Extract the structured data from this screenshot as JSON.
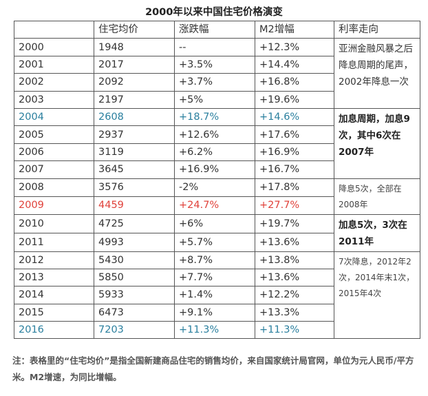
{
  "title": "2000年以来中国住宅价格演变",
  "headers": [
    "",
    "住宅均价",
    "涨跌幅",
    "M2增幅",
    "利率走向"
  ],
  "rows": [
    {
      "year": "2000",
      "price": "1948",
      "change": "--",
      "m2": "+12.3%",
      "style": "normal"
    },
    {
      "year": "2001",
      "price": "2017",
      "change": "+3.5%",
      "m2": "+14.4%",
      "style": "normal"
    },
    {
      "year": "2002",
      "price": "2092",
      "change": "+3.7%",
      "m2": "+16.8%",
      "style": "normal"
    },
    {
      "year": "2003",
      "price": "2197",
      "change": "+5%",
      "m2": "+19.6%",
      "style": "normal"
    },
    {
      "year": "2004",
      "price": "2608",
      "change": "+18.7%",
      "m2": "+14.6%",
      "style": "blue"
    },
    {
      "year": "2005",
      "price": "2937",
      "change": "+12.6%",
      "m2": "+17.6%",
      "style": "normal"
    },
    {
      "year": "2006",
      "price": "3119",
      "change": "+6.2%",
      "m2": "+16.9%",
      "style": "normal"
    },
    {
      "year": "2007",
      "price": "3645",
      "change": "+16.9%",
      "m2": "+16.7%",
      "style": "normal"
    },
    {
      "year": "2008",
      "price": "3576",
      "change": "-2%",
      "m2": "+17.8%",
      "style": "normal"
    },
    {
      "year": "2009",
      "price": "4459",
      "change": "+24.7%",
      "m2": "+27.7%",
      "style": "red"
    },
    {
      "year": "2010",
      "price": "4725",
      "change": "+6%",
      "m2": "+19.7%",
      "style": "normal"
    },
    {
      "year": "2011",
      "price": "4993",
      "change": "+5.7%",
      "m2": "+13.6%",
      "style": "normal"
    },
    {
      "year": "2012",
      "price": "5430",
      "change": "+8.7%",
      "m2": "+13.8%",
      "style": "normal"
    },
    {
      "year": "2013",
      "price": "5850",
      "change": "+7.7%",
      "m2": "+13.6%",
      "style": "normal"
    },
    {
      "year": "2014",
      "price": "5933",
      "change": "+1.4%",
      "m2": "+12.2%",
      "style": "normal"
    },
    {
      "year": "2015",
      "price": "6473",
      "change": "+9.1%",
      "m2": "+13.3%",
      "style": "normal"
    },
    {
      "year": "2016",
      "price": "7203",
      "change": "+11.3%",
      "m2": "+11.3%",
      "style": "blue"
    }
  ],
  "rate_notes": [
    {
      "text": "亚洲金融风暴之后降息周期的尾声，2002年降息一次",
      "span": 4,
      "style": "normal"
    },
    {
      "text": "加息周期，加息9次，其中6次在2007年",
      "span": 4,
      "style": "bold"
    },
    {
      "text": "降息5次，全部在2008年",
      "span": 2,
      "style": "small"
    },
    {
      "text": "加息5次，3次在2011年",
      "span": 2,
      "style": "bold"
    },
    {
      "text": "7次降息，2012年2次，2014年末1次，2015年4次",
      "span": 5,
      "style": "small"
    }
  ],
  "colors": {
    "blue": "#2a7f9e",
    "red": "#e0413a"
  },
  "note": "注：表格里的“住宅均价”是指全国新建商品住宅的销售均价，来自国家统计局官网，单位为元人民币/平方米。M2增速，为同比增幅。"
}
